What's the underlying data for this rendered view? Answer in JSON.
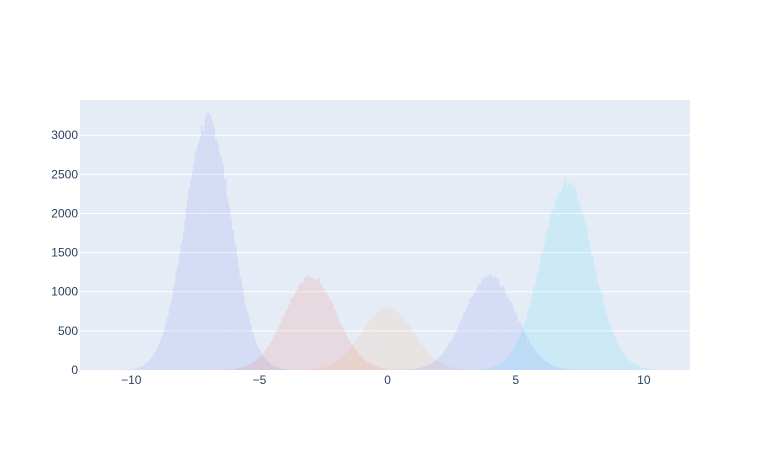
{
  "chart_data": {
    "type": "histogram",
    "title": "",
    "xlabel": "",
    "ylabel": "",
    "xlim": [
      -12,
      11.8
    ],
    "ylim": [
      0,
      3450
    ],
    "x_ticks": [
      -10,
      -5,
      0,
      5,
      10
    ],
    "y_ticks": [
      0,
      500,
      1000,
      1500,
      2000,
      2500,
      3000
    ],
    "x_tick_labels": [
      "−10",
      "−5",
      "0",
      "5",
      "10"
    ],
    "y_tick_labels": [
      "0",
      "500",
      "1000",
      "1500",
      "2000",
      "2500",
      "3000"
    ],
    "grid": true,
    "legend": "none",
    "series": [
      {
        "color": "#636efa",
        "peak_x": -7,
        "peak_count": 3200,
        "sd": 0.9
      },
      {
        "color": "#ef553b",
        "peak_x": -3,
        "peak_count": 1200,
        "sd": 1.0
      },
      {
        "color": "#ffa15a",
        "peak_x": 0,
        "peak_count": 800,
        "sd": 1.0
      },
      {
        "color": "#636efa",
        "peak_x": 4,
        "peak_count": 1200,
        "sd": 1.0
      },
      {
        "color": "#19d3f3",
        "peak_x": 7,
        "peak_count": 2400,
        "sd": 1.0
      }
    ],
    "opacity": 0.12
  },
  "colors": {
    "plot_background": "#e5ecf6",
    "grid": "#ffffff",
    "tick_text": "#2a3f5f"
  }
}
